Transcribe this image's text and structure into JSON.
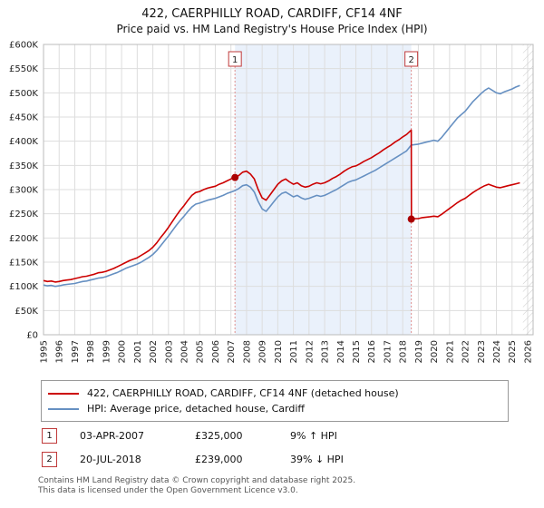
{
  "header": {
    "title": "422, CAERPHILLY ROAD, CARDIFF, CF14 4NF",
    "subtitle": "Price paid vs. HM Land Registry's House Price Index (HPI)"
  },
  "chart_data": {
    "type": "line",
    "units": "GBP thousands",
    "xlim": [
      1995,
      2026.35
    ],
    "ylim": [
      0,
      600
    ],
    "x_ticks": [
      1995,
      1996,
      1997,
      1998,
      1999,
      2000,
      2001,
      2002,
      2003,
      2004,
      2005,
      2006,
      2007,
      2008,
      2009,
      2010,
      2011,
      2012,
      2013,
      2014,
      2015,
      2016,
      2017,
      2018,
      2019,
      2020,
      2021,
      2022,
      2023,
      2024,
      2025,
      2026
    ],
    "y_ticks": [
      {
        "value": 0,
        "label": "£0"
      },
      {
        "value": 50,
        "label": "£50K"
      },
      {
        "value": 100,
        "label": "£100K"
      },
      {
        "value": 150,
        "label": "£150K"
      },
      {
        "value": 200,
        "label": "£200K"
      },
      {
        "value": 250,
        "label": "£250K"
      },
      {
        "value": 300,
        "label": "£300K"
      },
      {
        "value": 350,
        "label": "£350K"
      },
      {
        "value": 400,
        "label": "£400K"
      },
      {
        "value": 450,
        "label": "£450K"
      },
      {
        "value": 500,
        "label": "£500K"
      },
      {
        "value": 550,
        "label": "£550K"
      },
      {
        "value": 600,
        "label": "£600K"
      }
    ],
    "shaded_region": {
      "x_from": 2007.26,
      "x_to": 2018.55,
      "color": "#eaf1fb"
    },
    "hatch_region": {
      "x_from": 2025.7,
      "x_to": 2026.35
    },
    "grid_color": "#dddddd",
    "series": [
      {
        "name": "422, CAERPHILLY ROAD, CARDIFF, CF14 4NF (detached house)",
        "color": "#cc0000",
        "points": [
          [
            1995.0,
            112
          ],
          [
            1995.25,
            110
          ],
          [
            1995.5,
            111
          ],
          [
            1995.75,
            109
          ],
          [
            1996.0,
            110
          ],
          [
            1996.25,
            112
          ],
          [
            1996.5,
            113
          ],
          [
            1996.75,
            114
          ],
          [
            1997.0,
            116
          ],
          [
            1997.25,
            118
          ],
          [
            1997.5,
            120
          ],
          [
            1997.75,
            121
          ],
          [
            1998.0,
            123
          ],
          [
            1998.25,
            125
          ],
          [
            1998.5,
            128
          ],
          [
            1998.75,
            129
          ],
          [
            1999.0,
            131
          ],
          [
            1999.25,
            134
          ],
          [
            1999.5,
            137
          ],
          [
            1999.75,
            141
          ],
          [
            2000.0,
            145
          ],
          [
            2000.25,
            149
          ],
          [
            2000.5,
            153
          ],
          [
            2000.75,
            156
          ],
          [
            2001.0,
            159
          ],
          [
            2001.25,
            164
          ],
          [
            2001.5,
            169
          ],
          [
            2001.75,
            174
          ],
          [
            2002.0,
            181
          ],
          [
            2002.25,
            190
          ],
          [
            2002.5,
            201
          ],
          [
            2002.75,
            211
          ],
          [
            2003.0,
            222
          ],
          [
            2003.25,
            234
          ],
          [
            2003.5,
            246
          ],
          [
            2003.75,
            257
          ],
          [
            2004.0,
            267
          ],
          [
            2004.25,
            278
          ],
          [
            2004.5,
            288
          ],
          [
            2004.75,
            294
          ],
          [
            2005.0,
            296
          ],
          [
            2005.25,
            300
          ],
          [
            2005.5,
            303
          ],
          [
            2005.75,
            305
          ],
          [
            2006.0,
            307
          ],
          [
            2006.25,
            311
          ],
          [
            2006.5,
            314
          ],
          [
            2006.75,
            318
          ],
          [
            2007.0,
            322
          ],
          [
            2007.26,
            325
          ],
          [
            2007.5,
            329
          ],
          [
            2007.75,
            336
          ],
          [
            2008.0,
            338
          ],
          [
            2008.25,
            332
          ],
          [
            2008.5,
            322
          ],
          [
            2008.75,
            300
          ],
          [
            2009.0,
            283
          ],
          [
            2009.25,
            278
          ],
          [
            2009.5,
            289
          ],
          [
            2009.75,
            300
          ],
          [
            2010.0,
            311
          ],
          [
            2010.25,
            318
          ],
          [
            2010.5,
            322
          ],
          [
            2010.75,
            316
          ],
          [
            2011.0,
            311
          ],
          [
            2011.25,
            314
          ],
          [
            2011.5,
            308
          ],
          [
            2011.75,
            305
          ],
          [
            2012.0,
            307
          ],
          [
            2012.25,
            311
          ],
          [
            2012.5,
            314
          ],
          [
            2012.75,
            312
          ],
          [
            2013.0,
            314
          ],
          [
            2013.25,
            318
          ],
          [
            2013.5,
            323
          ],
          [
            2013.75,
            327
          ],
          [
            2014.0,
            332
          ],
          [
            2014.25,
            338
          ],
          [
            2014.5,
            343
          ],
          [
            2014.75,
            347
          ],
          [
            2015.0,
            349
          ],
          [
            2015.25,
            353
          ],
          [
            2015.5,
            358
          ],
          [
            2015.75,
            362
          ],
          [
            2016.0,
            366
          ],
          [
            2016.25,
            371
          ],
          [
            2016.5,
            376
          ],
          [
            2016.75,
            382
          ],
          [
            2017.0,
            387
          ],
          [
            2017.25,
            392
          ],
          [
            2017.5,
            398
          ],
          [
            2017.75,
            403
          ],
          [
            2018.0,
            409
          ],
          [
            2018.25,
            414
          ],
          [
            2018.55,
            423
          ],
          [
            2018.56,
            239
          ],
          [
            2018.75,
            240
          ],
          [
            2019.0,
            240
          ],
          [
            2019.25,
            242
          ],
          [
            2019.5,
            243
          ],
          [
            2019.75,
            244
          ],
          [
            2020.0,
            245
          ],
          [
            2020.25,
            244
          ],
          [
            2020.5,
            249
          ],
          [
            2020.75,
            255
          ],
          [
            2021.0,
            261
          ],
          [
            2021.25,
            267
          ],
          [
            2021.5,
            273
          ],
          [
            2021.75,
            278
          ],
          [
            2022.0,
            282
          ],
          [
            2022.25,
            288
          ],
          [
            2022.5,
            294
          ],
          [
            2022.75,
            299
          ],
          [
            2023.0,
            304
          ],
          [
            2023.25,
            308
          ],
          [
            2023.5,
            311
          ],
          [
            2023.75,
            308
          ],
          [
            2024.0,
            305
          ],
          [
            2024.25,
            304
          ],
          [
            2024.5,
            306
          ],
          [
            2024.75,
            308
          ],
          [
            2025.0,
            310
          ],
          [
            2025.25,
            312
          ],
          [
            2025.5,
            314
          ]
        ]
      },
      {
        "name": "HPI: Average price, detached house, Cardiff",
        "color": "#6690c2",
        "points": [
          [
            1995.0,
            103
          ],
          [
            1995.25,
            101
          ],
          [
            1995.5,
            102
          ],
          [
            1995.75,
            100
          ],
          [
            1996.0,
            101
          ],
          [
            1996.25,
            103
          ],
          [
            1996.5,
            104
          ],
          [
            1996.75,
            105
          ],
          [
            1997.0,
            106
          ],
          [
            1997.25,
            108
          ],
          [
            1997.5,
            110
          ],
          [
            1997.75,
            111
          ],
          [
            1998.0,
            113
          ],
          [
            1998.25,
            115
          ],
          [
            1998.5,
            117
          ],
          [
            1998.75,
            118
          ],
          [
            1999.0,
            120
          ],
          [
            1999.25,
            123
          ],
          [
            1999.5,
            126
          ],
          [
            1999.75,
            129
          ],
          [
            2000.0,
            133
          ],
          [
            2000.25,
            137
          ],
          [
            2000.5,
            140
          ],
          [
            2000.75,
            143
          ],
          [
            2001.0,
            146
          ],
          [
            2001.25,
            150
          ],
          [
            2001.5,
            155
          ],
          [
            2001.75,
            160
          ],
          [
            2002.0,
            166
          ],
          [
            2002.25,
            174
          ],
          [
            2002.5,
            184
          ],
          [
            2002.75,
            194
          ],
          [
            2003.0,
            204
          ],
          [
            2003.25,
            215
          ],
          [
            2003.5,
            226
          ],
          [
            2003.75,
            236
          ],
          [
            2004.0,
            245
          ],
          [
            2004.25,
            255
          ],
          [
            2004.5,
            264
          ],
          [
            2004.75,
            270
          ],
          [
            2005.0,
            272
          ],
          [
            2005.25,
            275
          ],
          [
            2005.5,
            278
          ],
          [
            2005.75,
            280
          ],
          [
            2006.0,
            282
          ],
          [
            2006.25,
            285
          ],
          [
            2006.5,
            288
          ],
          [
            2006.75,
            292
          ],
          [
            2007.0,
            295
          ],
          [
            2007.26,
            298
          ],
          [
            2007.5,
            302
          ],
          [
            2007.75,
            308
          ],
          [
            2008.0,
            310
          ],
          [
            2008.25,
            305
          ],
          [
            2008.5,
            295
          ],
          [
            2008.75,
            275
          ],
          [
            2009.0,
            260
          ],
          [
            2009.25,
            255
          ],
          [
            2009.5,
            265
          ],
          [
            2009.75,
            275
          ],
          [
            2010.0,
            285
          ],
          [
            2010.25,
            292
          ],
          [
            2010.5,
            295
          ],
          [
            2010.75,
            290
          ],
          [
            2011.0,
            285
          ],
          [
            2011.25,
            288
          ],
          [
            2011.5,
            283
          ],
          [
            2011.75,
            280
          ],
          [
            2012.0,
            282
          ],
          [
            2012.25,
            285
          ],
          [
            2012.5,
            288
          ],
          [
            2012.75,
            286
          ],
          [
            2013.0,
            288
          ],
          [
            2013.25,
            292
          ],
          [
            2013.5,
            296
          ],
          [
            2013.75,
            300
          ],
          [
            2014.0,
            305
          ],
          [
            2014.25,
            310
          ],
          [
            2014.5,
            315
          ],
          [
            2014.75,
            318
          ],
          [
            2015.0,
            320
          ],
          [
            2015.25,
            324
          ],
          [
            2015.5,
            328
          ],
          [
            2015.75,
            332
          ],
          [
            2016.0,
            336
          ],
          [
            2016.25,
            340
          ],
          [
            2016.5,
            345
          ],
          [
            2016.75,
            350
          ],
          [
            2017.0,
            355
          ],
          [
            2017.25,
            360
          ],
          [
            2017.5,
            365
          ],
          [
            2017.75,
            370
          ],
          [
            2018.0,
            375
          ],
          [
            2018.25,
            380
          ],
          [
            2018.55,
            392
          ],
          [
            2018.75,
            393
          ],
          [
            2019.0,
            394
          ],
          [
            2019.25,
            396
          ],
          [
            2019.5,
            398
          ],
          [
            2019.75,
            400
          ],
          [
            2020.0,
            402
          ],
          [
            2020.25,
            400
          ],
          [
            2020.5,
            408
          ],
          [
            2020.75,
            418
          ],
          [
            2021.0,
            428
          ],
          [
            2021.25,
            438
          ],
          [
            2021.5,
            448
          ],
          [
            2021.75,
            455
          ],
          [
            2022.0,
            462
          ],
          [
            2022.25,
            472
          ],
          [
            2022.5,
            482
          ],
          [
            2022.75,
            490
          ],
          [
            2023.0,
            498
          ],
          [
            2023.25,
            505
          ],
          [
            2023.5,
            510
          ],
          [
            2023.75,
            505
          ],
          [
            2024.0,
            500
          ],
          [
            2024.25,
            498
          ],
          [
            2024.5,
            502
          ],
          [
            2024.75,
            505
          ],
          [
            2025.0,
            508
          ],
          [
            2025.25,
            512
          ],
          [
            2025.5,
            515
          ]
        ]
      }
    ],
    "sale_markers": [
      {
        "label": "1",
        "x": 2007.26,
        "y": 325,
        "dot_color": "#aa0000",
        "line_color": "#e09090",
        "box_border": "#c03a3a"
      },
      {
        "label": "2",
        "x": 2018.55,
        "y": 239,
        "dot_color": "#aa0000",
        "line_color": "#e09090",
        "box_border": "#c03a3a"
      }
    ]
  },
  "legend": {
    "items": [
      {
        "label": "422, CAERPHILLY ROAD, CARDIFF, CF14 4NF (detached house)",
        "color": "#cc0000"
      },
      {
        "label": "HPI: Average price, detached house, Cardiff",
        "color": "#6690c2"
      }
    ]
  },
  "annotations": [
    {
      "num": "1",
      "date": "03-APR-2007",
      "price": "£325,000",
      "hpi_change": "9% ↑ HPI"
    },
    {
      "num": "2",
      "date": "20-JUL-2018",
      "price": "£239,000",
      "hpi_change": "39% ↓ HPI"
    }
  ],
  "footer": {
    "line1": "Contains HM Land Registry data © Crown copyright and database right 2025.",
    "line2": "This data is licensed under the Open Government Licence v3.0."
  }
}
